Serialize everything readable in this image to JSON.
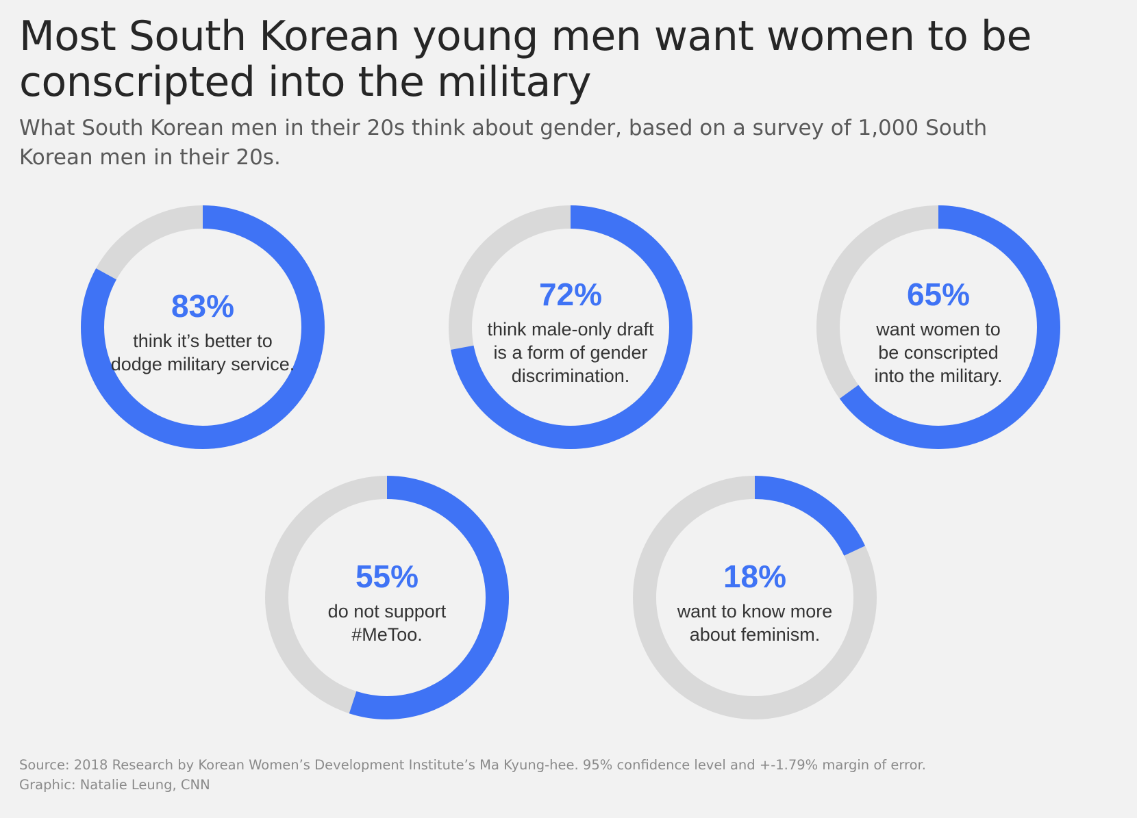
{
  "title": "Most South Korean young men want women to be conscripted into the military",
  "subtitle": "What South Korean men in their 20s think about gender, based on a survey of 1,000 South Korean men in their 20s.",
  "footer": {
    "source": "Source: 2018 Research by Korean Women’s Development Institute’s Ma Kyung-hee. 95% confidence level and +-1.79% margin of error.",
    "credit": "Graphic: Natalie Leung, CNN"
  },
  "colors": {
    "accent": "#3f73f5",
    "track": "#d9d9d9",
    "background": "#f2f2f2"
  },
  "chart_data": {
    "type": "pie",
    "variant": "donut",
    "items": [
      {
        "value": 83,
        "value_label": "83%",
        "label_lines": [
          "think it’s better to",
          "dodge military service."
        ]
      },
      {
        "value": 72,
        "value_label": "72%",
        "label_lines": [
          "think male-only draft",
          "is a form of gender",
          "discrimination."
        ]
      },
      {
        "value": 65,
        "value_label": "65%",
        "label_lines": [
          "want women to",
          "be conscripted",
          "into the military."
        ]
      },
      {
        "value": 55,
        "value_label": "55%",
        "label_lines": [
          "do not support",
          "#MeToo."
        ]
      },
      {
        "value": 18,
        "value_label": "18%",
        "label_lines": [
          "want to know more",
          "about feminism."
        ]
      }
    ]
  }
}
